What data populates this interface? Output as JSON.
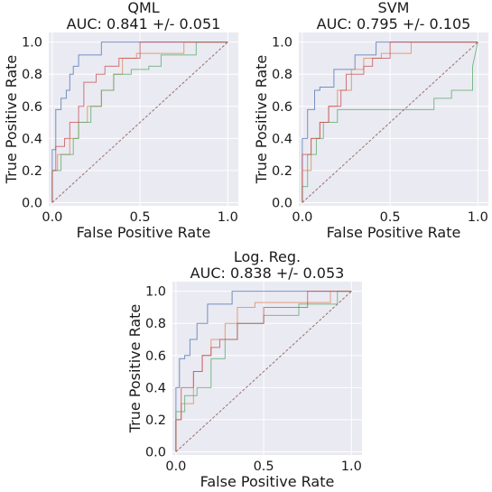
{
  "chart_data": [
    {
      "type": "line",
      "title": "QML",
      "subtitle": "AUC: 0.841 +/- 0.051",
      "xlabel": "False Positive Rate",
      "ylabel": "True Positive Rate",
      "xlim": [
        -0.02,
        1.06
      ],
      "ylim": [
        -0.02,
        1.06
      ],
      "xticks": [
        0.0,
        0.5,
        1.0
      ],
      "yticks": [
        0.0,
        0.2,
        0.4,
        0.6,
        0.8,
        1.0
      ],
      "xtick_labels": [
        "0.0",
        "0.5",
        "1.0"
      ],
      "ytick_labels": [
        "0.0",
        "0.2",
        "0.4",
        "0.6",
        "0.8",
        "1.0"
      ],
      "grid": true,
      "series": [
        {
          "color": "#4c72b0",
          "x": [
            0,
            0,
            0.02,
            0.02,
            0.05,
            0.05,
            0.08,
            0.08,
            0.1,
            0.1,
            0.12,
            0.12,
            0.15,
            0.15,
            0.2,
            0.2,
            0.28,
            0.28,
            0.33,
            0.33,
            0.4,
            0.4,
            1.0
          ],
          "y": [
            0,
            0.33,
            0.33,
            0.58,
            0.58,
            0.65,
            0.65,
            0.7,
            0.7,
            0.8,
            0.8,
            0.85,
            0.85,
            0.92,
            0.92,
            0.92,
            0.92,
            1.0,
            1.0,
            1.0,
            1.0,
            1.0,
            1.0
          ]
        },
        {
          "color": "#dd8452",
          "x": [
            0,
            0,
            0.03,
            0.03,
            0.1,
            0.1,
            0.15,
            0.15,
            0.2,
            0.2,
            0.28,
            0.28,
            0.35,
            0.35,
            0.4,
            0.4,
            0.48,
            0.48,
            0.75,
            0.75,
            1.0
          ],
          "y": [
            0,
            0.2,
            0.2,
            0.3,
            0.3,
            0.4,
            0.4,
            0.5,
            0.5,
            0.6,
            0.6,
            0.7,
            0.7,
            0.8,
            0.8,
            0.9,
            0.9,
            0.93,
            0.93,
            1.0,
            1.0
          ]
        },
        {
          "color": "#55a868",
          "x": [
            0,
            0,
            0.05,
            0.05,
            0.12,
            0.12,
            0.15,
            0.15,
            0.22,
            0.22,
            0.28,
            0.28,
            0.35,
            0.35,
            0.45,
            0.45,
            0.55,
            0.55,
            0.62,
            0.62,
            0.82,
            0.82,
            1.0
          ],
          "y": [
            0,
            0.2,
            0.2,
            0.3,
            0.3,
            0.4,
            0.4,
            0.5,
            0.5,
            0.6,
            0.6,
            0.7,
            0.7,
            0.8,
            0.8,
            0.83,
            0.83,
            0.85,
            0.85,
            0.92,
            0.92,
            1.0,
            1.0
          ]
        },
        {
          "color": "#c44e52",
          "x": [
            0,
            0,
            0.02,
            0.02,
            0.07,
            0.07,
            0.1,
            0.1,
            0.15,
            0.15,
            0.18,
            0.18,
            0.25,
            0.25,
            0.3,
            0.3,
            0.38,
            0.38,
            0.5,
            0.5,
            1.0
          ],
          "y": [
            0,
            0.2,
            0.2,
            0.35,
            0.35,
            0.4,
            0.4,
            0.5,
            0.5,
            0.6,
            0.6,
            0.75,
            0.75,
            0.8,
            0.8,
            0.85,
            0.85,
            0.9,
            0.9,
            1.0,
            1.0
          ]
        }
      ]
    },
    {
      "type": "line",
      "title": "SVM",
      "subtitle": "AUC: 0.795 +/- 0.105",
      "xlabel": "False Positive Rate",
      "ylabel": "True Positive Rate",
      "xlim": [
        -0.02,
        1.06
      ],
      "ylim": [
        -0.02,
        1.06
      ],
      "xticks": [
        0.0,
        0.5,
        1.0
      ],
      "yticks": [
        0.0,
        0.2,
        0.4,
        0.6,
        0.8,
        1.0
      ],
      "xtick_labels": [
        "0.0",
        "0.5",
        "1.0"
      ],
      "ytick_labels": [
        "0.0",
        "0.2",
        "0.4",
        "0.6",
        "0.8",
        "1.0"
      ],
      "grid": true,
      "series": [
        {
          "color": "#4c72b0",
          "x": [
            0,
            0,
            0.03,
            0.03,
            0.07,
            0.07,
            0.1,
            0.1,
            0.18,
            0.18,
            0.3,
            0.3,
            0.42,
            0.42,
            0.47,
            0.47,
            1.0
          ],
          "y": [
            0,
            0.4,
            0.4,
            0.58,
            0.58,
            0.7,
            0.7,
            0.72,
            0.72,
            0.83,
            0.83,
            0.92,
            0.92,
            1.0,
            1.0,
            1.0,
            1.0
          ]
        },
        {
          "color": "#dd8452",
          "x": [
            0,
            0,
            0.05,
            0.05,
            0.1,
            0.1,
            0.15,
            0.15,
            0.2,
            0.2,
            0.28,
            0.28,
            0.35,
            0.35,
            0.45,
            0.45,
            0.62,
            0.62,
            1.0
          ],
          "y": [
            0,
            0.2,
            0.2,
            0.4,
            0.4,
            0.5,
            0.5,
            0.6,
            0.6,
            0.7,
            0.7,
            0.83,
            0.83,
            0.9,
            0.9,
            0.93,
            0.93,
            1.0,
            1.0
          ]
        },
        {
          "color": "#55a868",
          "x": [
            0,
            0,
            0.03,
            0.03,
            0.08,
            0.08,
            0.12,
            0.12,
            0.2,
            0.2,
            0.28,
            0.28,
            0.75,
            0.75,
            0.85,
            0.85,
            0.97,
            0.97,
            1.0
          ],
          "y": [
            0,
            0.1,
            0.1,
            0.3,
            0.3,
            0.4,
            0.4,
            0.5,
            0.5,
            0.58,
            0.58,
            0.58,
            0.58,
            0.65,
            0.65,
            0.7,
            0.7,
            0.85,
            1.0
          ]
        },
        {
          "color": "#c44e52",
          "x": [
            0,
            0,
            0.05,
            0.05,
            0.1,
            0.1,
            0.15,
            0.15,
            0.22,
            0.22,
            0.25,
            0.25,
            0.35,
            0.35,
            0.4,
            0.4,
            0.5,
            0.5,
            1.0
          ],
          "y": [
            0,
            0.3,
            0.3,
            0.4,
            0.4,
            0.5,
            0.5,
            0.6,
            0.6,
            0.7,
            0.7,
            0.8,
            0.8,
            0.85,
            0.85,
            0.9,
            0.9,
            1.0,
            1.0
          ]
        }
      ]
    },
    {
      "type": "line",
      "title": "Log. Reg.",
      "subtitle": "AUC: 0.838 +/- 0.053",
      "xlabel": "False Positive Rate",
      "ylabel": "True Positive Rate",
      "xlim": [
        -0.02,
        1.06
      ],
      "ylim": [
        -0.02,
        1.06
      ],
      "xticks": [
        0.0,
        0.5,
        1.0
      ],
      "yticks": [
        0.0,
        0.2,
        0.4,
        0.6,
        0.8,
        1.0
      ],
      "xtick_labels": [
        "0.0",
        "0.5",
        "1.0"
      ],
      "ytick_labels": [
        "0.0",
        "0.2",
        "0.4",
        "0.6",
        "0.8",
        "1.0"
      ],
      "grid": true,
      "series": [
        {
          "color": "#4c72b0",
          "x": [
            0,
            0,
            0.02,
            0.02,
            0.05,
            0.05,
            0.08,
            0.08,
            0.12,
            0.12,
            0.18,
            0.18,
            0.32,
            0.32,
            1.0
          ],
          "y": [
            0,
            0.4,
            0.4,
            0.58,
            0.58,
            0.6,
            0.6,
            0.7,
            0.7,
            0.8,
            0.8,
            0.92,
            0.92,
            1.0,
            1.0
          ]
        },
        {
          "color": "#dd8452",
          "x": [
            0,
            0,
            0.03,
            0.03,
            0.1,
            0.1,
            0.15,
            0.15,
            0.2,
            0.2,
            0.28,
            0.28,
            0.35,
            0.35,
            0.45,
            0.45,
            0.88,
            0.88,
            1.0
          ],
          "y": [
            0,
            0.2,
            0.2,
            0.3,
            0.3,
            0.5,
            0.5,
            0.6,
            0.6,
            0.7,
            0.7,
            0.8,
            0.8,
            0.9,
            0.9,
            0.93,
            0.93,
            1.0,
            1.0
          ]
        },
        {
          "color": "#55a868",
          "x": [
            0,
            0,
            0.05,
            0.05,
            0.12,
            0.12,
            0.2,
            0.2,
            0.28,
            0.28,
            0.35,
            0.35,
            0.5,
            0.5,
            0.7,
            0.7,
            0.92,
            0.92,
            1.0
          ],
          "y": [
            0,
            0.25,
            0.25,
            0.35,
            0.35,
            0.4,
            0.4,
            0.58,
            0.58,
            0.7,
            0.7,
            0.8,
            0.8,
            0.85,
            0.85,
            0.92,
            0.92,
            1.0,
            1.0
          ]
        },
        {
          "color": "#c44e52",
          "x": [
            0,
            0,
            0.03,
            0.03,
            0.1,
            0.1,
            0.15,
            0.15,
            0.2,
            0.2,
            0.25,
            0.25,
            0.35,
            0.35,
            0.5,
            0.5,
            0.75,
            0.75,
            1.0
          ],
          "y": [
            0,
            0.2,
            0.2,
            0.4,
            0.4,
            0.5,
            0.5,
            0.6,
            0.6,
            0.65,
            0.65,
            0.7,
            0.7,
            0.8,
            0.8,
            0.9,
            0.9,
            1.0,
            1.0
          ]
        }
      ]
    }
  ]
}
